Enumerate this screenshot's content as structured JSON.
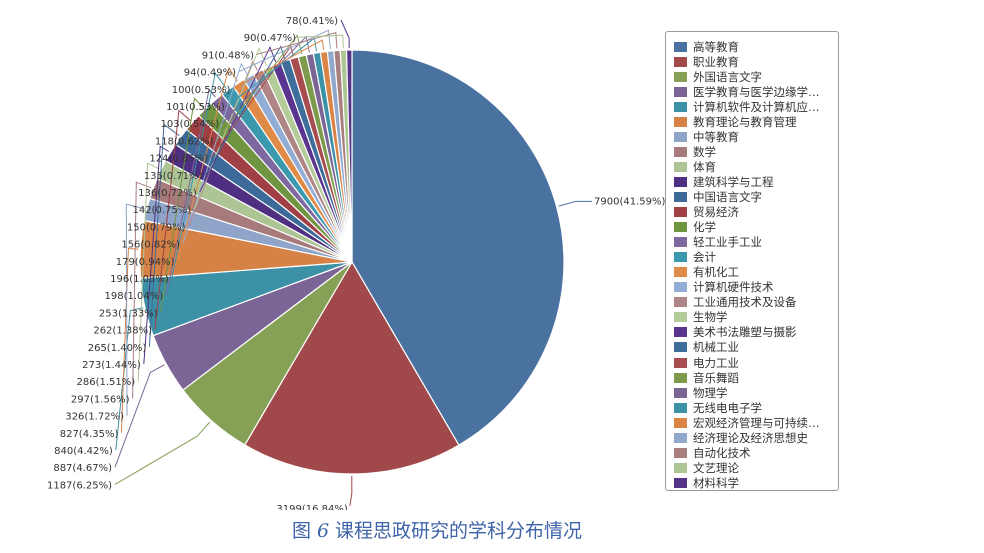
{
  "caption": {
    "figure_label": "图",
    "figure_number": "6",
    "title": "课程思政研究的学科分布情况"
  },
  "chart_data": {
    "type": "pie",
    "title": "",
    "slices": [
      {
        "name": "高等教育",
        "value": 7900,
        "label": "7900(41.59%)",
        "color": "#4a72a0"
      },
      {
        "name": "职业教育",
        "value": 3199,
        "label": "3199(16.84%)",
        "color": "#a0484a"
      },
      {
        "name": "外国语言文字",
        "value": 1187,
        "label": "1187(6.25%)",
        "color": "#86a055"
      },
      {
        "name": "医学教育与医学边缘学…",
        "value": 887,
        "label": "887(4.67%)",
        "color": "#7a6596"
      },
      {
        "name": "计算机软件及计算机应…",
        "value": 840,
        "label": "840(4.42%)",
        "color": "#3d91a6"
      },
      {
        "name": "教育理论与教育管理",
        "value": 827,
        "label": "827(4.35%)",
        "color": "#d68247"
      },
      {
        "name": "中等教育",
        "value": 326,
        "label": "326(1.72%)",
        "color": "#8ea4c8"
      },
      {
        "name": "数学",
        "value": 297,
        "label": "297(1.56%)",
        "color": "#a77b7b"
      },
      {
        "name": "体育",
        "value": 286,
        "label": "286(1.51%)",
        "color": "#adc494"
      },
      {
        "name": "建筑科学与工程",
        "value": 273,
        "label": "273(1.44%)",
        "color": "#4f2f82"
      },
      {
        "name": "中国语言文字",
        "value": 265,
        "label": "265(1.40%)",
        "color": "#3e6a9a"
      },
      {
        "name": "贸易经济",
        "value": 262,
        "label": "262(1.38%)",
        "color": "#a04045"
      },
      {
        "name": "化学",
        "value": 253,
        "label": "253(1.33%)",
        "color": "#6f9540"
      },
      {
        "name": "轻工业手工业",
        "value": 198,
        "label": "198(1.04%)",
        "color": "#7e68a0"
      },
      {
        "name": "会计",
        "value": 196,
        "label": "196(1.03%)",
        "color": "#3b98ad"
      },
      {
        "name": "有机化工",
        "value": 179,
        "label": "179(0.94%)",
        "color": "#e08a47"
      },
      {
        "name": "计算机硬件技术",
        "value": 156,
        "label": "156(0.82%)",
        "color": "#93aed6"
      },
      {
        "name": "工业通用技术及设备",
        "value": 150,
        "label": "150(0.79%)",
        "color": "#b08585"
      },
      {
        "name": "生物学",
        "value": 142,
        "label": "142(0.75%)",
        "color": "#b4cc99"
      },
      {
        "name": "美术书法雕塑与摄影",
        "value": 136,
        "label": "136(0.72%)",
        "color": "#5a3590"
      },
      {
        "name": "机械工业",
        "value": 135,
        "label": "135(0.71%)",
        "color": "#3f6d9c"
      },
      {
        "name": "电力工业",
        "value": 124,
        "label": "124(0.65%)",
        "color": "#a84d4f"
      },
      {
        "name": "音乐舞蹈",
        "value": 118,
        "label": "118(0.62%)",
        "color": "#7d9a4d"
      },
      {
        "name": "物理学",
        "value": 103,
        "label": "103(0.54%)",
        "color": "#7a6594"
      },
      {
        "name": "无线电电子学",
        "value": 101,
        "label": "101(0.53%)",
        "color": "#3c93a8"
      },
      {
        "name": "宏观经济管理与可持续…",
        "value": 100,
        "label": "100(0.53%)",
        "color": "#da8446"
      },
      {
        "name": "经济理论及经济思想史",
        "value": 94,
        "label": "94(0.49%)",
        "color": "#8fa8cc"
      },
      {
        "name": "自动化技术",
        "value": 91,
        "label": "91(0.48%)",
        "color": "#a87e7e"
      },
      {
        "name": "文艺理论",
        "value": 90,
        "label": "90(0.47%)",
        "color": "#aec595"
      },
      {
        "name": "材料科学",
        "value": 78,
        "label": "78(0.41%)",
        "color": "#553389"
      }
    ]
  }
}
